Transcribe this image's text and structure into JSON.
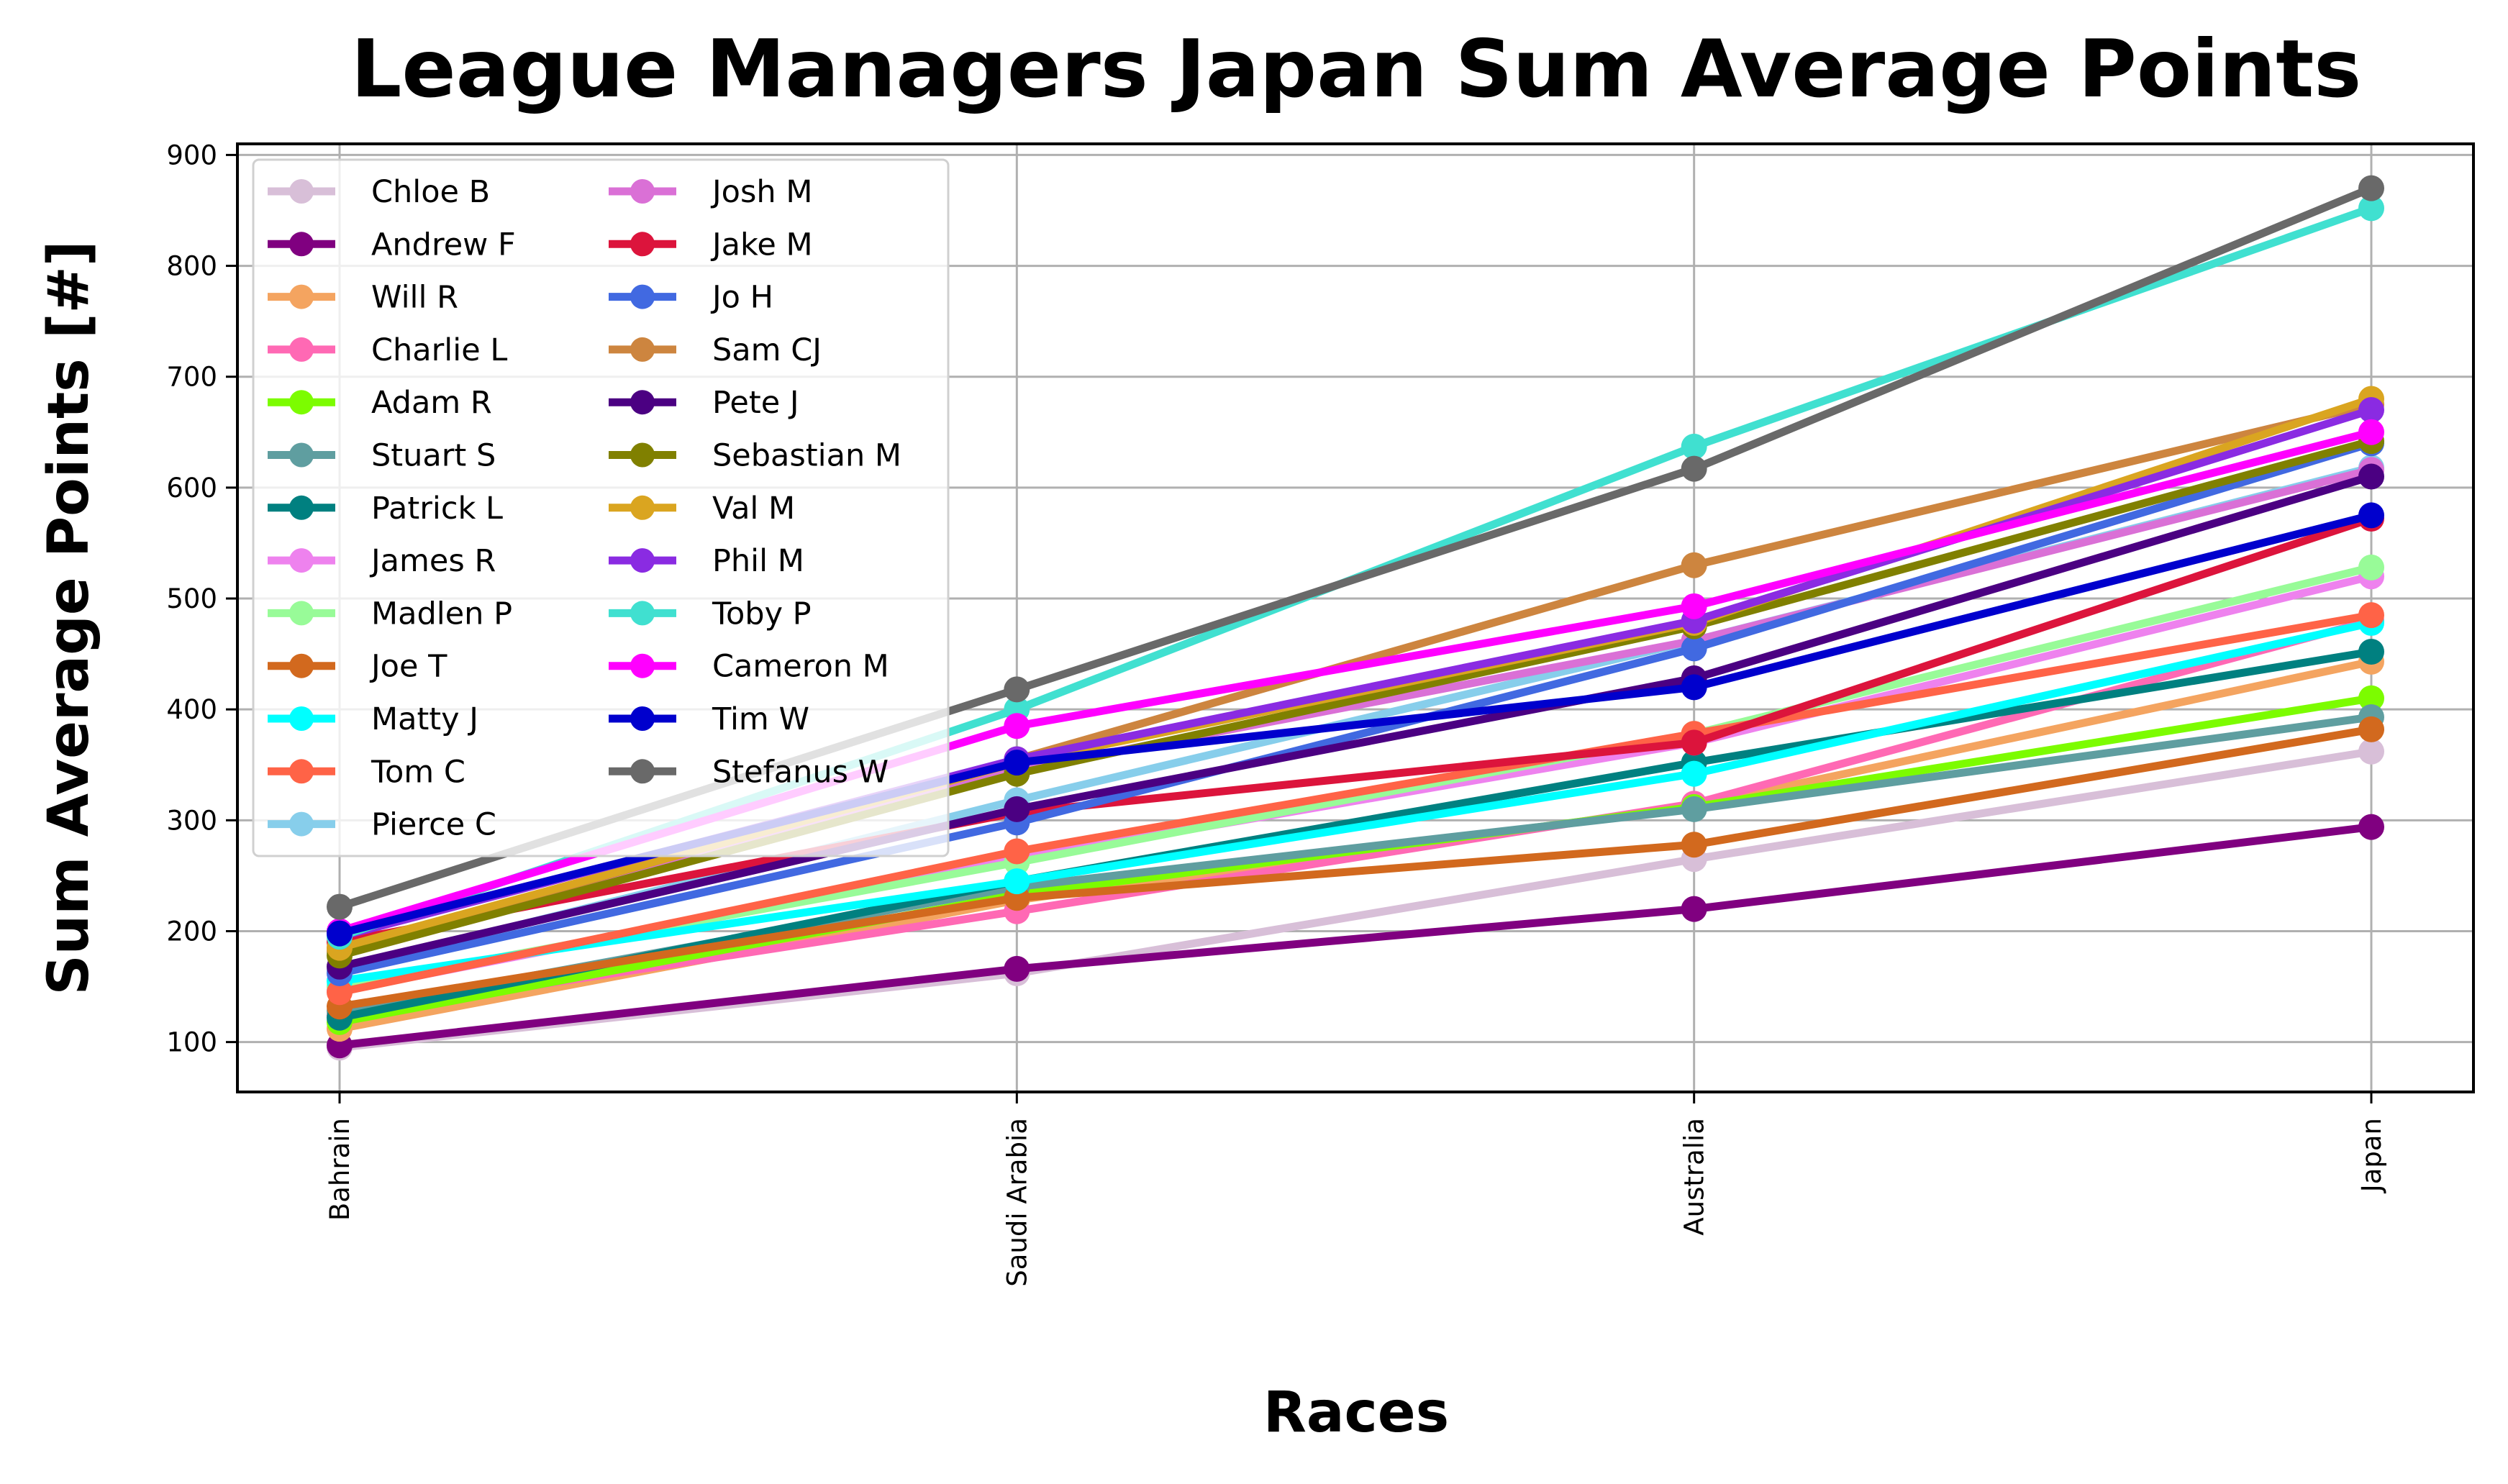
{
  "chart_data": {
    "type": "line",
    "title": "League Managers Japan Sum Average Points",
    "xlabel": "Races",
    "ylabel": "Sum Average Points [#]",
    "categories": [
      "Bahrain",
      "Saudi Arabia",
      "Australia",
      "Japan"
    ],
    "yticks": [
      "100",
      "200",
      "300",
      "400",
      "500",
      "600",
      "700",
      "800",
      "900"
    ],
    "ylim": [
      55,
      910
    ],
    "grid": true,
    "legend_placement": "upper-left",
    "legend_columns": 2,
    "series": [
      {
        "name": "Chloe B",
        "color": "#d8bfd8",
        "values": [
          95,
          162,
          265,
          362
        ]
      },
      {
        "name": "Andrew F",
        "color": "#800080",
        "values": [
          97,
          166,
          220,
          294
        ]
      },
      {
        "name": "Will R",
        "color": "#f4a460",
        "values": [
          112,
          228,
          313,
          443
        ]
      },
      {
        "name": "Charlie L",
        "color": "#ff69b4",
        "values": [
          124,
          218,
          315,
          480
        ]
      },
      {
        "name": "Adam R",
        "color": "#7cfc00",
        "values": [
          118,
          233,
          312,
          410
        ]
      },
      {
        "name": "Stuart S",
        "color": "#5f9ea0",
        "values": [
          128,
          240,
          310,
          393
        ]
      },
      {
        "name": "Patrick L",
        "color": "#008080",
        "values": [
          122,
          245,
          352,
          452
        ]
      },
      {
        "name": "James R",
        "color": "#ee82ee",
        "values": [
          146,
          265,
          370,
          520
        ]
      },
      {
        "name": "Madlen P",
        "color": "#98fb98",
        "values": [
          150,
          262,
          378,
          528
        ]
      },
      {
        "name": "Joe T",
        "color": "#d2691e",
        "values": [
          132,
          230,
          278,
          382
        ]
      },
      {
        "name": "Matty J",
        "color": "#00ffff",
        "values": [
          155,
          245,
          342,
          478
        ]
      },
      {
        "name": "Tom C",
        "color": "#ff6347",
        "values": [
          145,
          272,
          378,
          485
        ]
      },
      {
        "name": "Pierce C",
        "color": "#87ceeb",
        "values": [
          165,
          318,
          462,
          618
        ]
      },
      {
        "name": "Josh M",
        "color": "#da70d6",
        "values": [
          185,
          345,
          462,
          616
        ]
      },
      {
        "name": "Jake M",
        "color": "#dc143c",
        "values": [
          190,
          307,
          370,
          572
        ]
      },
      {
        "name": "Jo H",
        "color": "#4169e1",
        "values": [
          162,
          298,
          455,
          640
        ]
      },
      {
        "name": "Sam CJ",
        "color": "#cd853f",
        "values": [
          182,
          355,
          530,
          675
        ]
      },
      {
        "name": "Pete J",
        "color": "#4b0082",
        "values": [
          168,
          310,
          428,
          610
        ]
      },
      {
        "name": "Sebastian M",
        "color": "#808000",
        "values": [
          178,
          342,
          475,
          642
        ]
      },
      {
        "name": "Val M",
        "color": "#daa520",
        "values": [
          185,
          352,
          478,
          680
        ]
      },
      {
        "name": "Phil M",
        "color": "#8a2be2",
        "values": [
          195,
          355,
          480,
          670
        ]
      },
      {
        "name": "Toby P",
        "color": "#40e0d0",
        "values": [
          195,
          400,
          637,
          852
        ]
      },
      {
        "name": "Cameron M",
        "color": "#ff00ff",
        "values": [
          200,
          385,
          493,
          650
        ]
      },
      {
        "name": "Tim W",
        "color": "#0000cd",
        "values": [
          198,
          352,
          420,
          575
        ]
      },
      {
        "name": "Stefanus W",
        "color": "#696969",
        "values": [
          222,
          418,
          617,
          870
        ]
      }
    ]
  }
}
